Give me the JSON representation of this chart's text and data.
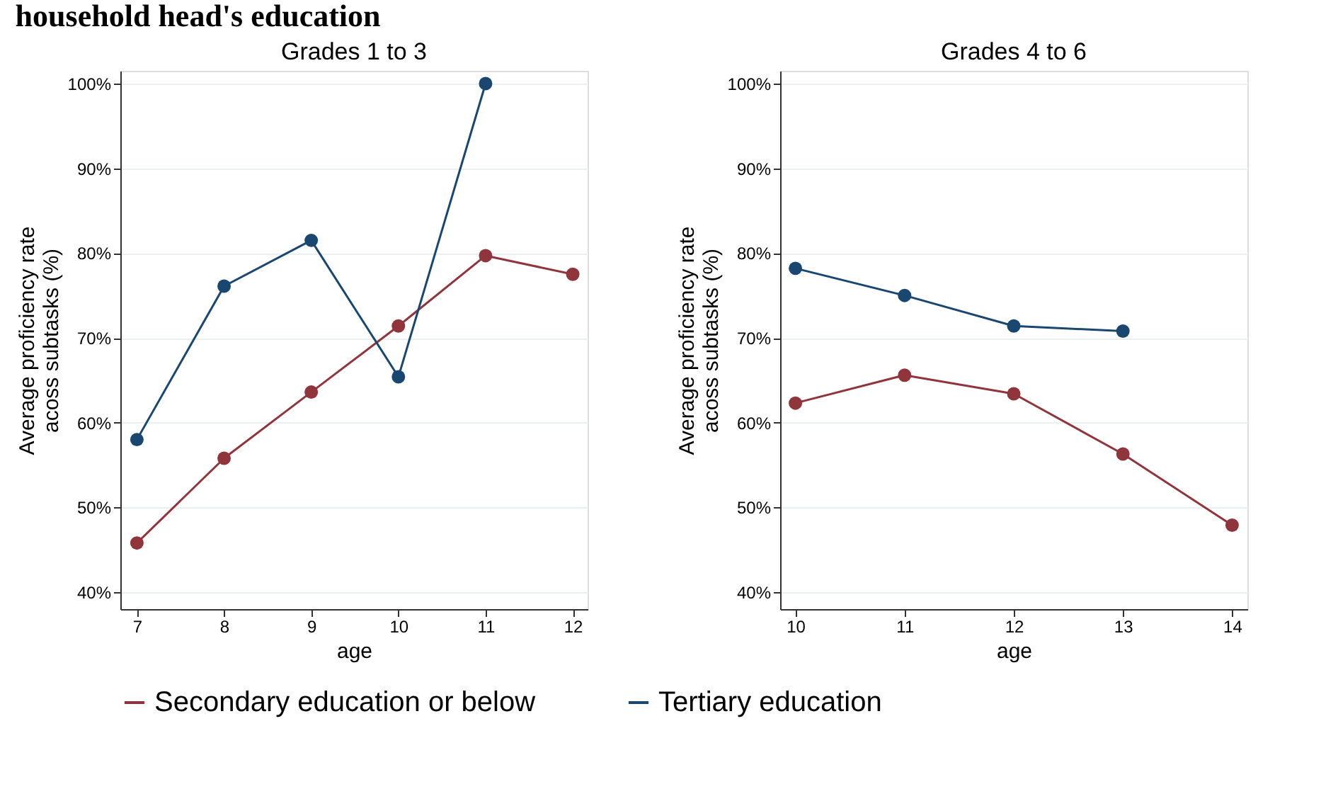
{
  "chart_data": [
    {
      "type": "line",
      "title": "Grades 1 to 3",
      "xlabel": "age",
      "ylabel": "Average proficiency rate\nacoss subtasks (%)",
      "annotations": [
        "household head's education"
      ],
      "x": [
        7,
        8,
        9,
        10,
        11,
        12
      ],
      "xlim": [
        6.81,
        12.17
      ],
      "xticks": [
        7,
        8,
        9,
        10,
        11,
        12
      ],
      "ylim": [
        38,
        101.5
      ],
      "yticks": [
        {
          "value": 40,
          "label": "40%"
        },
        {
          "value": 50,
          "label": "50%"
        },
        {
          "value": 60,
          "label": "60%"
        },
        {
          "value": 70,
          "label": "70%"
        },
        {
          "value": 80,
          "label": "80%"
        },
        {
          "value": 90,
          "label": "90%"
        },
        {
          "value": 100,
          "label": "100%"
        }
      ],
      "grid": "y",
      "marker": "circle",
      "legend": "bottom",
      "series": [
        {
          "name": "Secondary education or below",
          "color": "#90353b",
          "values": [
            45.8,
            55.8,
            63.6,
            71.4,
            79.7,
            77.5
          ]
        },
        {
          "name": "Tertiary education",
          "color": "#1a476f",
          "values": [
            58.0,
            76.1,
            81.5,
            65.4,
            100.0,
            null
          ]
        }
      ]
    },
    {
      "type": "line",
      "title": "Grades 4 to 6",
      "xlabel": "age",
      "ylabel": "Average proficiency rate\nacoss subtasks (%)",
      "x": [
        10,
        11,
        12,
        13,
        14
      ],
      "xlim": [
        9.86,
        14.14
      ],
      "xticks": [
        10,
        11,
        12,
        13,
        14
      ],
      "ylim": [
        38,
        101.5
      ],
      "yticks": [
        {
          "value": 40,
          "label": "40%"
        },
        {
          "value": 50,
          "label": "50%"
        },
        {
          "value": 60,
          "label": "60%"
        },
        {
          "value": 70,
          "label": "70%"
        },
        {
          "value": 80,
          "label": "80%"
        },
        {
          "value": 90,
          "label": "90%"
        },
        {
          "value": 100,
          "label": "100%"
        }
      ],
      "grid": "y",
      "marker": "circle",
      "legend": "bottom",
      "series": [
        {
          "name": "Secondary education or below",
          "color": "#90353b",
          "values": [
            62.3,
            65.6,
            63.4,
            56.3,
            47.9
          ]
        },
        {
          "name": "Tertiary education",
          "color": "#1a476f",
          "values": [
            78.2,
            75.0,
            71.4,
            70.8,
            null
          ]
        }
      ]
    }
  ]
}
